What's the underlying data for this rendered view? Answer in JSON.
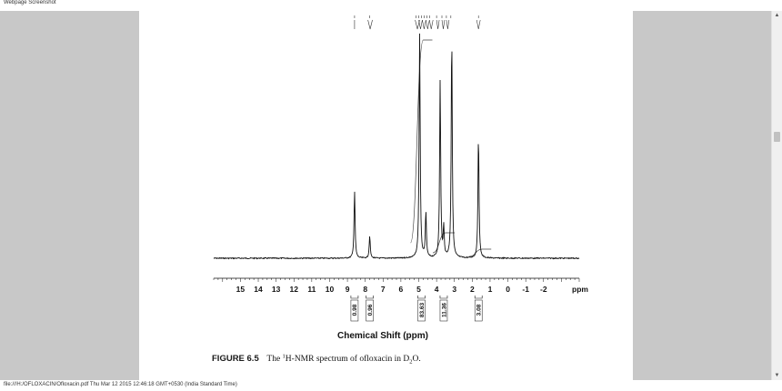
{
  "header": {
    "title": "Webpage Screenshot"
  },
  "footer": {
    "text": "file:///H:/OFLOXACIN/Ofloxacin.pdf Thu Mar 12 2015 12:46:18 GMT+0530 (India Standard Time)"
  },
  "scrollbar": {
    "up_icon": "triangle-up",
    "down_icon": "triangle-down"
  },
  "chart_data": {
    "type": "line",
    "title": "",
    "xlabel": "Chemical Shift (ppm)",
    "x_unit": "ppm",
    "ylabel": "",
    "x_reversed": true,
    "xlim": [
      16.5,
      -4.0
    ],
    "x_ticks": [
      15,
      14,
      13,
      12,
      11,
      10,
      9,
      8,
      7,
      6,
      5,
      4,
      3,
      2,
      1,
      0,
      -1,
      -2
    ],
    "x_tick_labels": [
      "15",
      "14",
      "13",
      "12",
      "11",
      "10",
      "9",
      "8",
      "7",
      "6",
      "5",
      "4",
      "3",
      "2",
      "1",
      "0",
      "-1",
      "-2"
    ],
    "peaks": [
      {
        "x": 8.6,
        "height": 0.3
      },
      {
        "x": 7.75,
        "height": 0.1
      },
      {
        "x": 4.95,
        "height": 1.0
      },
      {
        "x": 4.6,
        "height": 0.2
      },
      {
        "x": 3.8,
        "height": 0.79
      },
      {
        "x": 3.6,
        "height": 0.13
      },
      {
        "x": 3.15,
        "height": 1.0
      },
      {
        "x": 1.65,
        "height": 0.55
      }
    ],
    "integrals": [
      {
        "x": 8.6,
        "label": "0.98"
      },
      {
        "x": 7.75,
        "label": "0.96"
      },
      {
        "x": 4.85,
        "label": "83.63"
      },
      {
        "x": 3.6,
        "label": "11.36"
      },
      {
        "x": 1.65,
        "label": "3.08"
      }
    ],
    "caption": {
      "figure_label": "FIGURE 6.5",
      "text_before": "The ",
      "superscript": "1",
      "text_middle": "H-NMR spectrum of ofloxacin in D",
      "subscript": "2",
      "text_after": "O."
    }
  }
}
